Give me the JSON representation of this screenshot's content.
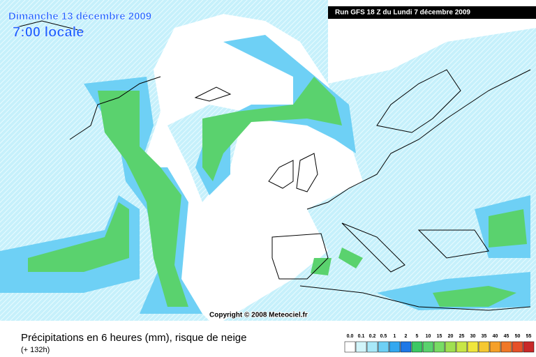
{
  "header": {
    "date": "Dimanche 13 décembre 2009",
    "time": "7:00 locale",
    "run": "Run GFS 18 Z du Lundi 7 décembre 2009"
  },
  "copyright": "Copyright © 2008 Meteociel.fr",
  "footer": {
    "title": "Précipitations en 6 heures (mm), risque de neige",
    "lead": "(+ 132h)"
  },
  "legend": {
    "labels": [
      "0.0",
      "0.1",
      "0.2",
      "0.5",
      "1",
      "2",
      "5",
      "10",
      "15",
      "20",
      "25",
      "30",
      "35",
      "40",
      "45",
      "50",
      "55"
    ],
    "colors": [
      "#ffffff",
      "#d2f5fa",
      "#a8e8f8",
      "#6ed0f5",
      "#32a8f0",
      "#1e78e6",
      "#3cc864",
      "#5ad26e",
      "#78dc64",
      "#a0e050",
      "#c8e646",
      "#f0e63c",
      "#f5c832",
      "#f5a028",
      "#f07828",
      "#e65028",
      "#c82828"
    ]
  }
}
